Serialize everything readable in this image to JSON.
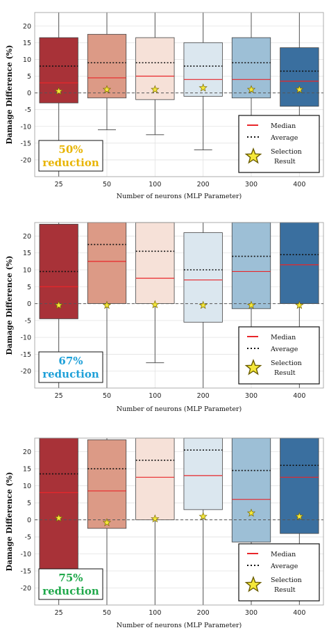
{
  "chart_data": [
    {
      "type": "box",
      "xlabel": "Number of neurons (MLP Parameter)",
      "ylabel": "Damage Difference (%)",
      "ylim": [
        -25,
        24
      ],
      "yticks": [
        -20,
        -15,
        -10,
        -5,
        0,
        5,
        10,
        15,
        20
      ],
      "categories": [
        "25",
        "50",
        "100",
        "200",
        "300",
        "400"
      ],
      "grid": true,
      "reduction_label": [
        "50%",
        "reduction"
      ],
      "reduction_color": "#e8b400",
      "boxes": [
        {
          "category": "25",
          "q1": -3.0,
          "q3": 16.5,
          "median": 3.0,
          "mean": 8.0,
          "whisker_low": -25,
          "whisker_high": 24,
          "selection": 0.5,
          "color": "#a83238"
        },
        {
          "category": "50",
          "q1": -1.5,
          "q3": 17.5,
          "median": 4.5,
          "mean": 9.0,
          "whisker_low": -11.0,
          "whisker_high": 24,
          "selection": 1.0,
          "color": "#dc9a86"
        },
        {
          "category": "100",
          "q1": -2.0,
          "q3": 16.5,
          "median": 5.0,
          "mean": 9.0,
          "whisker_low": -12.5,
          "whisker_high": 24,
          "selection": 1.0,
          "color": "#f6e1d8"
        },
        {
          "category": "200",
          "q1": -1.0,
          "q3": 15.0,
          "median": 4.0,
          "mean": 8.0,
          "whisker_low": -17.0,
          "whisker_high": 24,
          "selection": 1.5,
          "color": "#dbe7ef"
        },
        {
          "category": "300",
          "q1": -1.5,
          "q3": 16.5,
          "median": 4.0,
          "mean": 9.0,
          "whisker_low": -15.0,
          "whisker_high": 24,
          "selection": 1.0,
          "color": "#9dbfd6"
        },
        {
          "category": "400",
          "q1": -4.0,
          "q3": 13.5,
          "median": 3.5,
          "mean": 6.5,
          "whisker_low": -20.0,
          "whisker_high": 24,
          "selection": 1.0,
          "color": "#3a6f9f"
        }
      ],
      "legend": {
        "median": "Median",
        "average": "Average",
        "selection": [
          "Selection",
          "Result"
        ],
        "placement": "lower-right"
      }
    },
    {
      "type": "box",
      "xlabel": "Number of neurons (MLP Parameter)",
      "ylabel": "Damage Difference (%)",
      "ylim": [
        -25,
        24
      ],
      "yticks": [
        -20,
        -15,
        -10,
        -5,
        0,
        5,
        10,
        15,
        20
      ],
      "categories": [
        "25",
        "50",
        "100",
        "200",
        "300",
        "400"
      ],
      "grid": true,
      "reduction_label": [
        "67%",
        "reduction"
      ],
      "reduction_color": "#1ea0d8",
      "boxes": [
        {
          "category": "25",
          "q1": -4.5,
          "q3": 23.5,
          "median": 5.0,
          "mean": 9.5,
          "whisker_low": -25,
          "whisker_high": 24,
          "selection": -0.5,
          "color": "#a83238"
        },
        {
          "category": "50",
          "q1": 0.0,
          "q3": 24.0,
          "median": 12.5,
          "mean": 17.5,
          "whisker_low": -25,
          "whisker_high": 24,
          "selection": -0.5,
          "color": "#dc9a86"
        },
        {
          "category": "100",
          "q1": 0.0,
          "q3": 24.0,
          "median": 7.5,
          "mean": 15.5,
          "whisker_low": -17.5,
          "whisker_high": 24,
          "selection": -0.3,
          "color": "#f6e1d8"
        },
        {
          "category": "200",
          "q1": -5.5,
          "q3": 21.0,
          "median": 7.0,
          "mean": 10.0,
          "whisker_low": -25,
          "whisker_high": 24,
          "selection": -0.5,
          "color": "#dbe7ef"
        },
        {
          "category": "300",
          "q1": -1.5,
          "q3": 24.0,
          "median": 9.5,
          "mean": 14.0,
          "whisker_low": -20.0,
          "whisker_high": 24,
          "selection": -0.5,
          "color": "#9dbfd6"
        },
        {
          "category": "400",
          "q1": 0.0,
          "q3": 24.0,
          "median": 11.5,
          "mean": 14.5,
          "whisker_low": -25,
          "whisker_high": 24,
          "selection": -0.5,
          "color": "#3a6f9f"
        }
      ],
      "legend": {
        "median": "Median",
        "average": "Average",
        "selection": [
          "Selection",
          "Result"
        ],
        "placement": "lower-right"
      }
    },
    {
      "type": "box",
      "xlabel": "Number of neurons (MLP Parameter)",
      "ylabel": "Damage Difference (%)",
      "ylim": [
        -25,
        24
      ],
      "yticks": [
        -20,
        -15,
        -10,
        -5,
        0,
        5,
        10,
        15,
        20
      ],
      "categories": [
        "25",
        "50",
        "100",
        "200",
        "300",
        "400"
      ],
      "grid": true,
      "reduction_label": [
        "75%",
        "reduction"
      ],
      "reduction_color": "#1fa84a",
      "boxes": [
        {
          "category": "25",
          "q1": -14.5,
          "q3": 24.0,
          "median": 8.0,
          "mean": 13.5,
          "whisker_low": -25,
          "whisker_high": 24,
          "selection": 0.5,
          "color": "#a83238"
        },
        {
          "category": "50",
          "q1": -2.5,
          "q3": 23.5,
          "median": 8.5,
          "mean": 15.0,
          "whisker_low": -25,
          "whisker_high": 24,
          "selection": -0.8,
          "color": "#dc9a86"
        },
        {
          "category": "100",
          "q1": 0.0,
          "q3": 24.0,
          "median": 12.5,
          "mean": 17.5,
          "whisker_low": -25,
          "whisker_high": 24,
          "selection": 0.3,
          "color": "#f6e1d8"
        },
        {
          "category": "200",
          "q1": 3.0,
          "q3": 24.0,
          "median": 13.0,
          "mean": 20.5,
          "whisker_low": -25,
          "whisker_high": 24,
          "selection": 1.0,
          "color": "#dbe7ef"
        },
        {
          "category": "300",
          "q1": -6.5,
          "q3": 24.0,
          "median": 6.0,
          "mean": 14.5,
          "whisker_low": -25,
          "whisker_high": 24,
          "selection": 2.0,
          "color": "#9dbfd6"
        },
        {
          "category": "400",
          "q1": -4.0,
          "q3": 24.0,
          "median": 12.5,
          "mean": 16.0,
          "whisker_low": -25,
          "whisker_high": 24,
          "selection": 1.0,
          "color": "#3a6f9f"
        }
      ],
      "legend": {
        "median": "Median",
        "average": "Average",
        "selection": [
          "Selection",
          "Result"
        ],
        "placement": "lower-right"
      }
    }
  ]
}
